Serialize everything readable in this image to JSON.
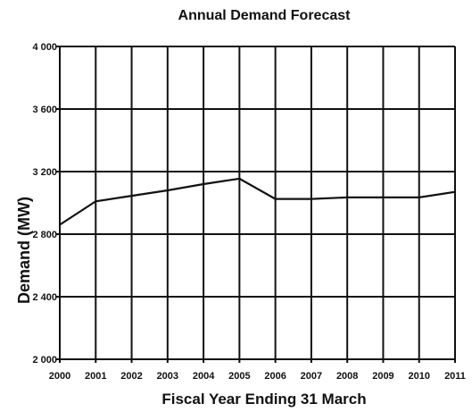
{
  "chart_data": {
    "type": "line",
    "title": "Annual Demand Forecast",
    "x_label": "Fiscal Year Ending 31 March",
    "y_label": "Demand (MW)",
    "categories": [
      "2000",
      "2001",
      "2002",
      "2003",
      "2004",
      "2005",
      "2006",
      "2007",
      "2008",
      "2009",
      "2010",
      "2011"
    ],
    "series": [
      {
        "name": "Demand",
        "color": "#111111",
        "values": [
          2860,
          3010,
          3045,
          3080,
          3120,
          3155,
          3025,
          3025,
          3035,
          3035,
          3035,
          3070
        ]
      }
    ],
    "ylim": [
      2000,
      4000
    ],
    "yticks": [
      {
        "value": 2000,
        "label": "2 000"
      },
      {
        "value": 2400,
        "label": "2 400"
      },
      {
        "value": 2800,
        "label": "2 800"
      },
      {
        "value": 3200,
        "label": "3 200"
      },
      {
        "value": 3600,
        "label": "3 600"
      },
      {
        "value": 4000,
        "label": "4 000"
      }
    ],
    "grid": true
  }
}
